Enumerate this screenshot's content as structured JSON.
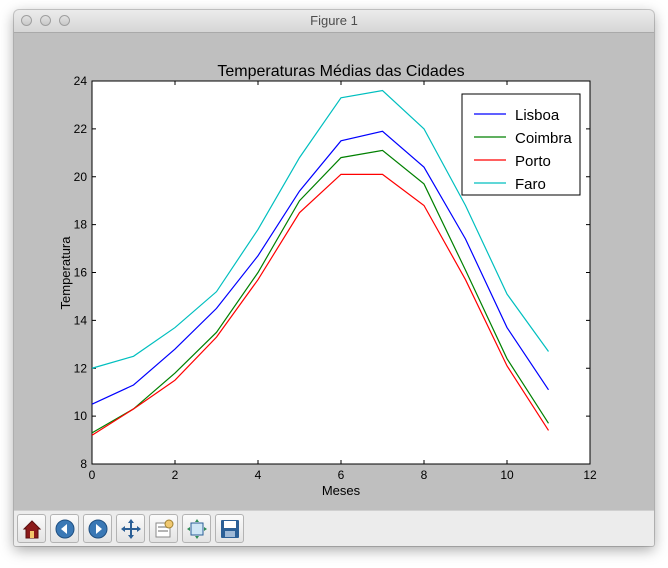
{
  "window": {
    "title": "Figure 1"
  },
  "chart_data": {
    "type": "line",
    "title": "Temperaturas Médias das Cidades",
    "xlabel": "Meses",
    "ylabel": "Temperatura",
    "xlim": [
      0,
      12
    ],
    "ylim": [
      8,
      24
    ],
    "xticks": [
      "0",
      "2",
      "4",
      "6",
      "8",
      "10",
      "12"
    ],
    "yticks": [
      "8",
      "10",
      "12",
      "14",
      "16",
      "18",
      "20",
      "22",
      "24"
    ],
    "x": [
      0,
      1,
      2,
      3,
      4,
      5,
      6,
      7,
      8,
      9,
      10,
      11
    ],
    "series": [
      {
        "name": "Lisboa",
        "color": "#0000ff",
        "values": [
          10.5,
          11.3,
          12.8,
          14.5,
          16.7,
          19.4,
          21.5,
          21.9,
          20.4,
          17.4,
          13.7,
          11.1
        ]
      },
      {
        "name": "Coimbra",
        "color": "#008000",
        "values": [
          9.3,
          10.3,
          11.8,
          13.5,
          16.0,
          19.0,
          20.8,
          21.1,
          19.7,
          16.1,
          12.4,
          9.7
        ]
      },
      {
        "name": "Porto",
        "color": "#ff0000",
        "values": [
          9.2,
          10.3,
          11.5,
          13.3,
          15.7,
          18.5,
          20.1,
          20.1,
          18.8,
          15.7,
          12.1,
          9.4
        ]
      },
      {
        "name": "Faro",
        "color": "#00bfbf",
        "values": [
          12.0,
          12.5,
          13.7,
          15.2,
          17.8,
          20.8,
          23.3,
          23.6,
          22.0,
          18.8,
          15.1,
          12.7
        ]
      }
    ],
    "legend": "top-right",
    "grid": false
  },
  "toolbar": {
    "buttons": [
      "home-icon",
      "back-arrow-icon",
      "forward-arrow-icon",
      "pan-icon",
      "zoom-icon",
      "subplots-icon",
      "save-icon"
    ]
  }
}
